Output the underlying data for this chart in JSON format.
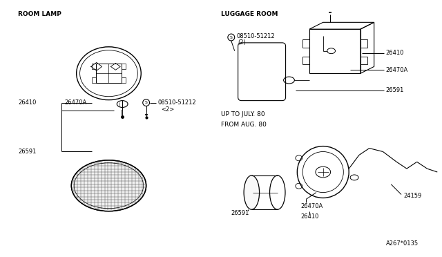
{
  "bg_color": "#ffffff",
  "line_color": "#000000",
  "fig_size": [
    6.4,
    3.72
  ],
  "dpi": 100,
  "texts": {
    "room_lamp": "ROOM LAMP",
    "luggage_room": "LUGGAGE ROOM",
    "up_to": "UP TO JULY. 80",
    "from_aug": "FROM AUG. 80",
    "26410": "26410",
    "26470A": "26470A",
    "26591": "26591",
    "08510_label": "08510-51212",
    "08510_qty": "<2>",
    "08510_qty2": "(2)",
    "24159": "24159",
    "ref": "A267*0135"
  }
}
